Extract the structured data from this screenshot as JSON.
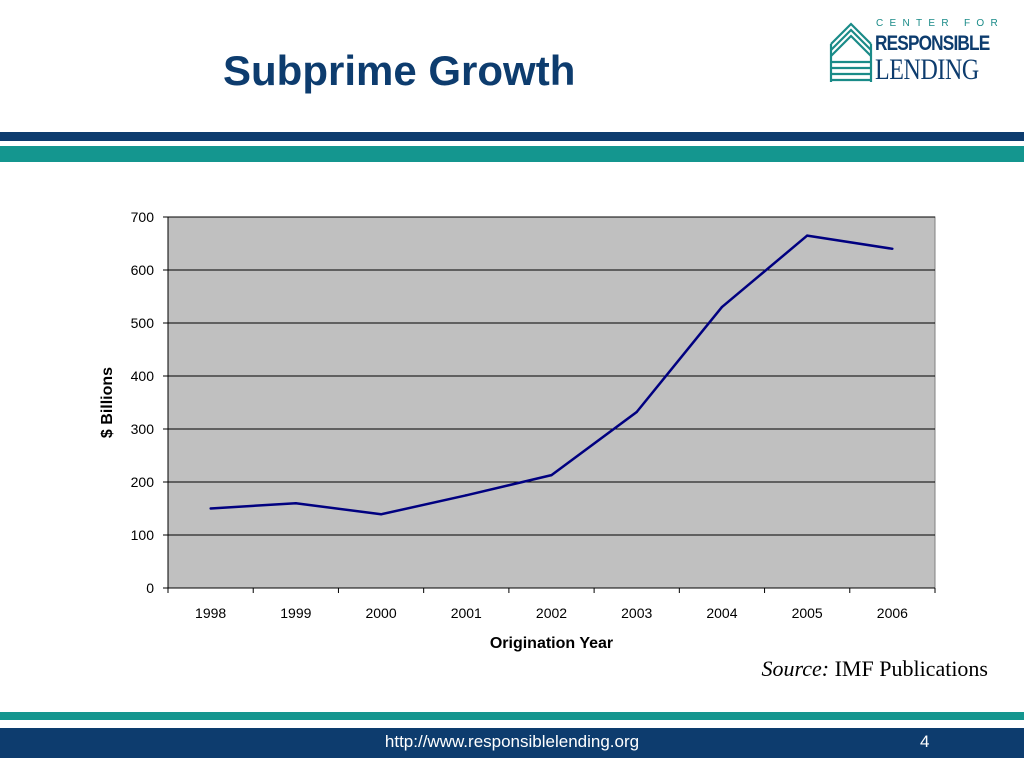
{
  "slide": {
    "title": "Subprime Growth",
    "source_label": "Source:",
    "source_text": "IMF Publications",
    "footer_url": "http://www.responsiblelending.org",
    "page_number": "4"
  },
  "logo": {
    "line1": "CENTER FOR",
    "line2": "RESPONSIBLE",
    "line3": "LENDING",
    "icon": "building-stripes-icon"
  },
  "colors": {
    "navy": "#0d3c6e",
    "teal": "#14968f",
    "plot_bg": "#c0c0c0",
    "line": "#000080"
  },
  "chart_data": {
    "type": "line",
    "categories": [
      "1998",
      "1999",
      "2000",
      "2001",
      "2002",
      "2003",
      "2004",
      "2005",
      "2006"
    ],
    "series": [
      {
        "values": [
          150,
          160,
          139,
          175,
          213,
          332,
          530,
          665,
          640
        ]
      }
    ],
    "xlabel": "Origination Year",
    "ylabel": "$ Billions",
    "ylim": [
      0,
      700
    ],
    "yticks": [
      0,
      100,
      200,
      300,
      400,
      500,
      600,
      700
    ],
    "grid": true,
    "legend": "none"
  }
}
